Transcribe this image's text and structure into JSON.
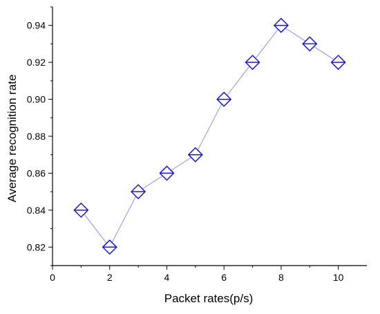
{
  "chart_data": {
    "type": "line",
    "title": "",
    "xlabel": "Packet rates(p/s)",
    "ylabel": "Average recognition rate",
    "xlim": [
      0,
      11
    ],
    "ylim": [
      0.81,
      0.95
    ],
    "x_ticks": [
      0,
      2,
      4,
      6,
      8,
      10
    ],
    "x_tick_labels": [
      "0",
      "2",
      "4",
      "6",
      "8",
      "10"
    ],
    "y_ticks": [
      0.82,
      0.84,
      0.86,
      0.88,
      0.9,
      0.92,
      0.94
    ],
    "y_tick_labels": [
      "0.82",
      "0.84",
      "0.86",
      "0.88",
      "0.90",
      "0.92",
      "0.94"
    ],
    "grid": false,
    "marker": "diamond",
    "series": [
      {
        "x": [
          1,
          2,
          3,
          4,
          5,
          6,
          7,
          8,
          9,
          10
        ],
        "y": [
          0.84,
          0.82,
          0.85,
          0.86,
          0.87,
          0.9,
          0.92,
          0.94,
          0.93,
          0.92
        ],
        "color": "#1a1acd",
        "line_color": "#8f8fe6"
      }
    ]
  }
}
